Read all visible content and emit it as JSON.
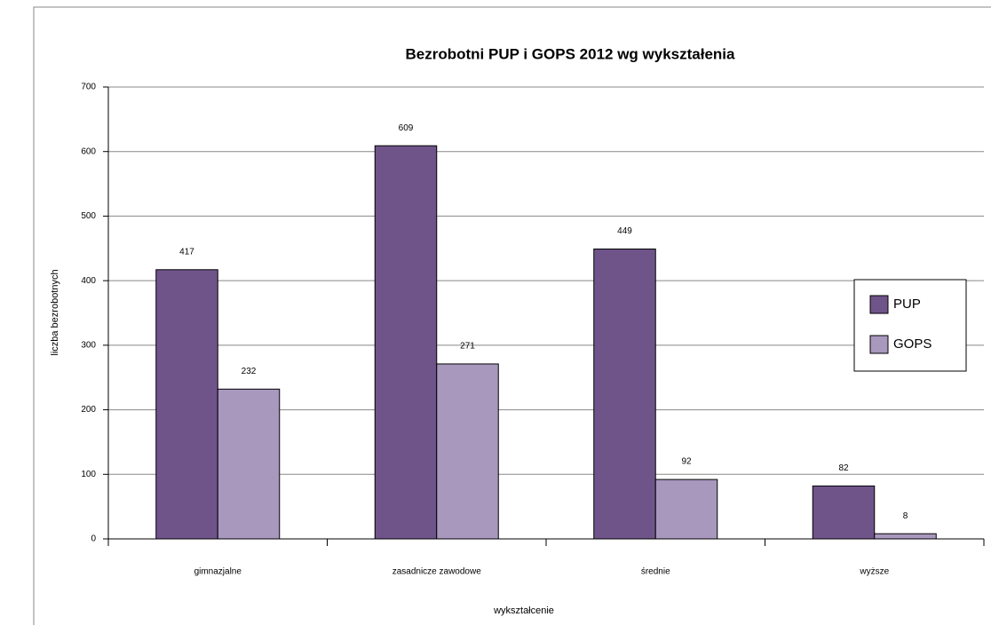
{
  "chart_data": {
    "type": "bar",
    "title": "Bezrobotni PUP i GOPS 2012 wg wykształenia",
    "x_label": "wykształcenie",
    "y_label": "liczba bezrobotnych",
    "categories": [
      "gimnazjalne",
      "zasadnicze zawodowe",
      "średnie",
      "wyższe"
    ],
    "series": [
      {
        "name": "PUP",
        "color": "#6f548a",
        "values": [
          417,
          609,
          449,
          82
        ]
      },
      {
        "name": "GOPS",
        "color": "#a898bd",
        "values": [
          232,
          271,
          92,
          8
        ]
      }
    ],
    "ylim": [
      0,
      700
    ],
    "yticks": [
      0,
      100,
      200,
      300,
      400,
      500,
      600,
      700
    ],
    "grid": true,
    "legend": "right"
  }
}
